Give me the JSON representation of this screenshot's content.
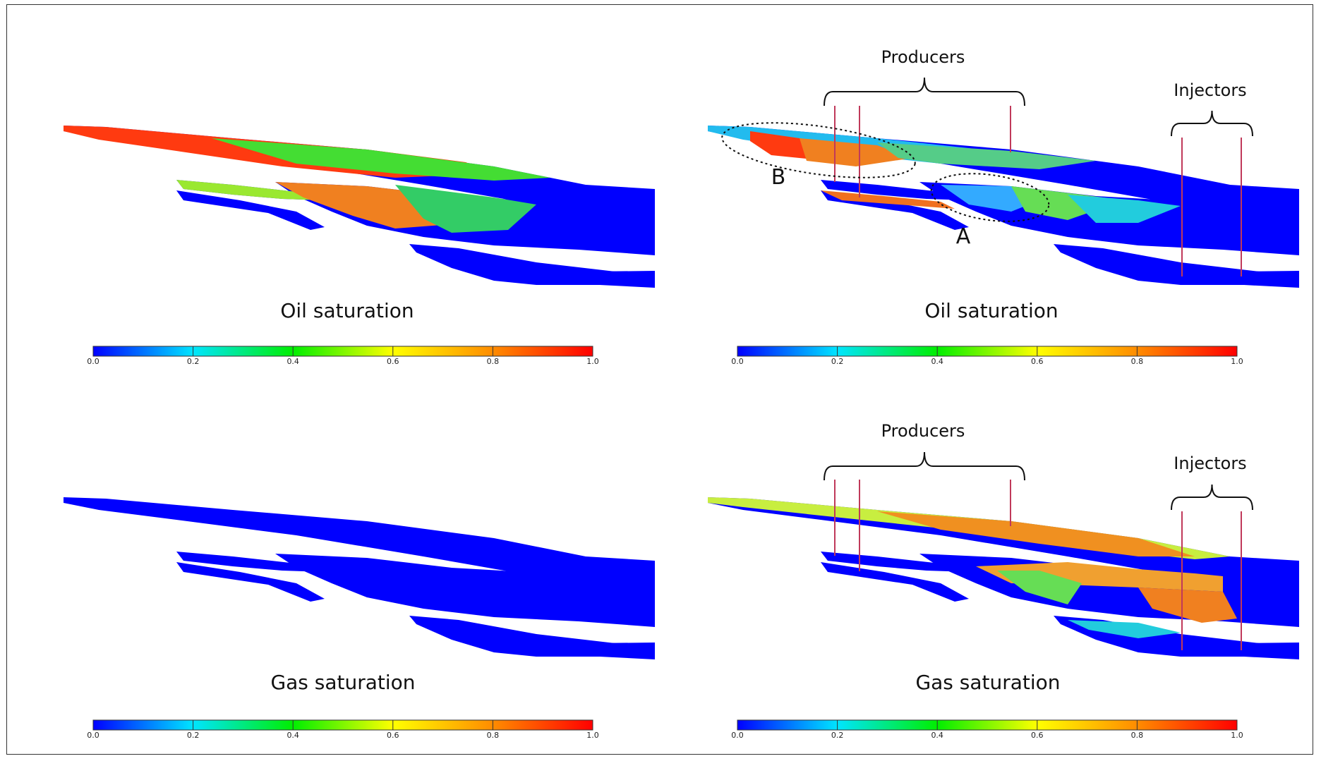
{
  "panels": [
    {
      "id": "p1",
      "title": "Oil saturation",
      "scenario": "oil-initial",
      "annotations": false
    },
    {
      "id": "p2",
      "title": "Oil saturation",
      "scenario": "oil-final",
      "annotations": true
    },
    {
      "id": "p3",
      "title": "Gas saturation",
      "scenario": "gas-initial",
      "annotations": false
    },
    {
      "id": "p4",
      "title": "Gas saturation",
      "scenario": "gas-final",
      "annotations": true
    }
  ],
  "labels": {
    "producers": "Producers",
    "injectors": "Injectors",
    "marker_a": "A",
    "marker_b": "B"
  },
  "colorbar": {
    "ticks": [
      "0.0",
      "0.2",
      "0.4",
      "0.6",
      "0.8",
      "1.0"
    ],
    "range": [
      0,
      1
    ],
    "colors": [
      "#0000ff",
      "#00e5ff",
      "#00ee00",
      "#ffff00",
      "#ff8c00",
      "#ff0000"
    ]
  },
  "colors": {
    "well": "#c0395a",
    "frame": "#333333"
  }
}
